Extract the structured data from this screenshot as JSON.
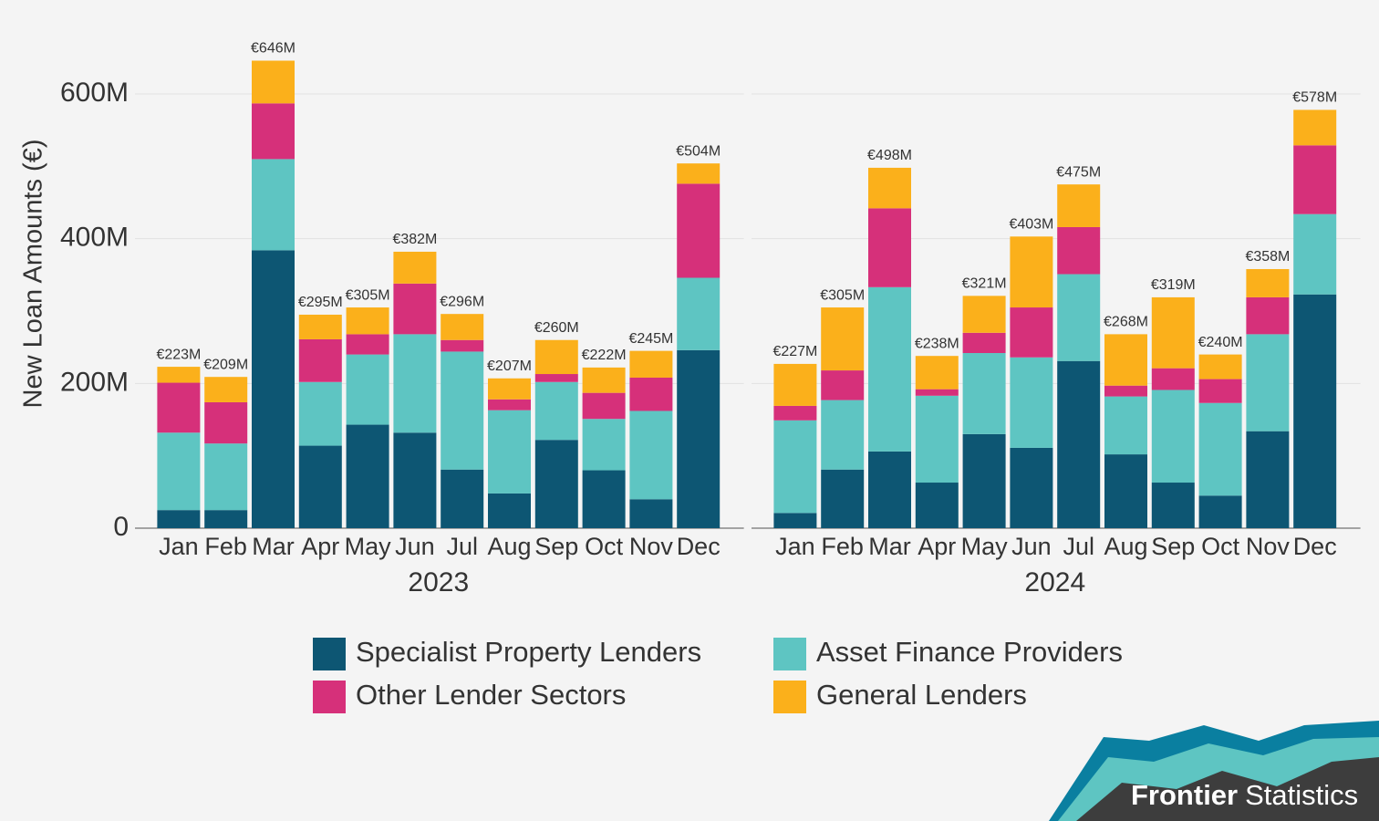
{
  "chart_data": {
    "type": "bar",
    "stacked": true,
    "y_label": "New Loan Amounts (€)",
    "ylim": [
      0,
      650
    ],
    "yticks": [
      0,
      {
        "value": 200,
        "label": "200M"
      },
      {
        "value": 400,
        "label": "400M"
      },
      {
        "value": 600,
        "label": "600M"
      }
    ],
    "grid": true,
    "categories": [
      "Jan",
      "Feb",
      "Mar",
      "Apr",
      "May",
      "Jun",
      "Jul",
      "Aug",
      "Sep",
      "Oct",
      "Nov",
      "Dec"
    ],
    "series": [
      {
        "name": "Specialist Property Lenders",
        "color": "#0d5673"
      },
      {
        "name": "Asset Finance Providers",
        "color": "#5ec5c2"
      },
      {
        "name": "Other Lender Sectors",
        "color": "#d6307a"
      },
      {
        "name": "General Lenders",
        "color": "#fbb01b"
      }
    ],
    "panels": [
      {
        "x_label": "2023",
        "values": [
          [
            25,
            25,
            384,
            114,
            143,
            132,
            81,
            48,
            122,
            80,
            40,
            246
          ],
          [
            107,
            92,
            126,
            88,
            97,
            136,
            163,
            115,
            80,
            71,
            122,
            100
          ],
          [
            69,
            57,
            77,
            59,
            28,
            70,
            16,
            15,
            11,
            36,
            46,
            130
          ],
          [
            22,
            35,
            59,
            34,
            37,
            44,
            36,
            29,
            47,
            35,
            37,
            28
          ]
        ],
        "total_labels": [
          "€223M",
          "€209M",
          "€646M",
          "€295M",
          "€305M",
          "€382M",
          "€296M",
          "€207M",
          "€260M",
          "€222M",
          "€245M",
          "€504M"
        ]
      },
      {
        "x_label": "2024",
        "values": [
          [
            21,
            81,
            106,
            63,
            130,
            111,
            231,
            102,
            63,
            45,
            134,
            323
          ],
          [
            128,
            96,
            227,
            120,
            112,
            125,
            120,
            80,
            128,
            128,
            134,
            111
          ],
          [
            20,
            41,
            109,
            9,
            28,
            69,
            65,
            15,
            30,
            33,
            51,
            95
          ],
          [
            58,
            87,
            56,
            46,
            51,
            98,
            59,
            71,
            98,
            34,
            39,
            49
          ]
        ],
        "total_labels": [
          "€227M",
          "€305M",
          "€498M",
          "€238M",
          "€321M",
          "€403M",
          "€475M",
          "€268M",
          "€319M",
          "€240M",
          "€358M",
          "€578M"
        ]
      }
    ]
  },
  "logo": {
    "bold": "Frontier",
    "regular": "Statistics"
  }
}
